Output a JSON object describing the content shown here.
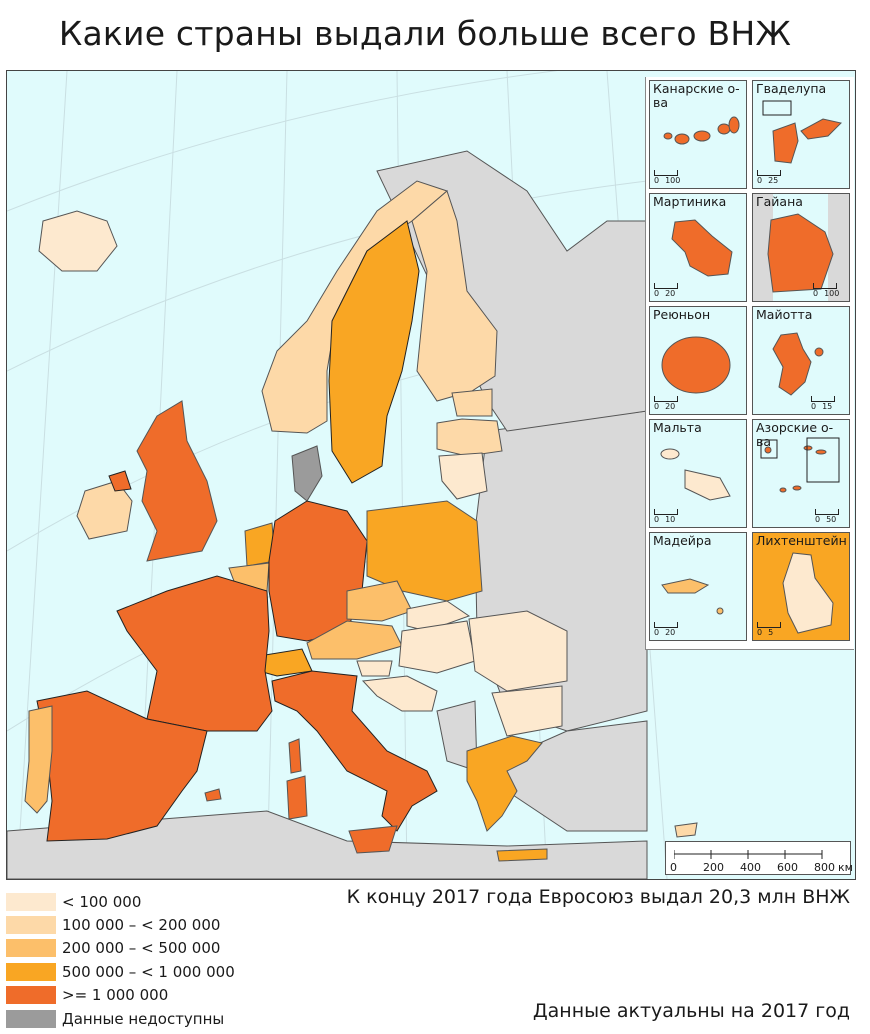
{
  "title": "Какие страны выдали больше всего ВНЖ",
  "legend": {
    "items": [
      {
        "label": "< 100 000",
        "color": "#fde9cf"
      },
      {
        "label": "100 000 – < 200 000",
        "color": "#fdd9a8"
      },
      {
        "label": "200 000 – < 500 000",
        "color": "#fcbf6a"
      },
      {
        "label": "500 000 – < 1 000 000",
        "color": "#f9a623"
      },
      {
        "label": ">= 1 000 000",
        "color": "#ef6c2a"
      },
      {
        "label": "Данные недоступны",
        "color": "#9b9b9b"
      }
    ]
  },
  "note": "К концу 2017 года Евросоюз выдал 20,3 млн ВНЖ",
  "footer": "Данные актуальны на 2017 год",
  "scale": {
    "ticks": [
      "0",
      "200",
      "400",
      "600",
      "800"
    ],
    "unit": "км"
  },
  "insets": [
    {
      "name": "Канарские о-ва",
      "scale": [
        "0",
        "100"
      ],
      "color": "#ef6c2a"
    },
    {
      "name": "Гваделупа",
      "scale": [
        "0",
        "25"
      ],
      "color": "#ef6c2a"
    },
    {
      "name": "Мартиника",
      "scale": [
        "0",
        "20"
      ],
      "color": "#ef6c2a"
    },
    {
      "name": "Гайана",
      "scale": [
        "0",
        "100"
      ],
      "color": "#ef6c2a"
    },
    {
      "name": "Реюньон",
      "scale": [
        "0",
        "20"
      ],
      "color": "#ef6c2a"
    },
    {
      "name": "Майотта",
      "scale": [
        "0",
        "15"
      ],
      "color": "#ef6c2a"
    },
    {
      "name": "Мальта",
      "scale": [
        "0",
        "10"
      ],
      "color": "#fde9cf"
    },
    {
      "name": "Азорские о-ва",
      "scale": [
        "0",
        "50"
      ],
      "color": "#ef6c2a"
    },
    {
      "name": "Мадейра",
      "scale": [
        "0",
        "20"
      ],
      "color": "#fcbf6a"
    },
    {
      "name": "Лихтенштейн",
      "scale": [
        "0",
        "5"
      ],
      "color": "#f9a623"
    }
  ]
}
